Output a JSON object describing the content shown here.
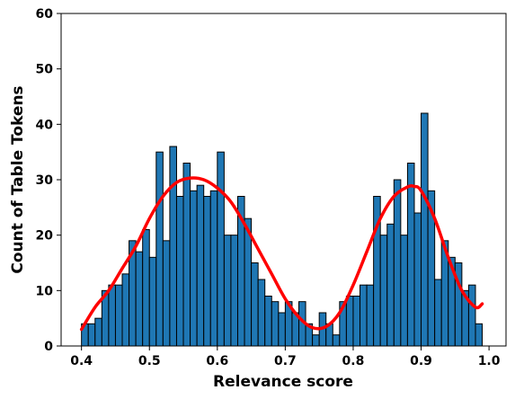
{
  "chart_data": {
    "type": "bar",
    "xlabel": "Relevance score",
    "ylabel": "Count of Table Tokens",
    "xlim": [
      0.37,
      1.025
    ],
    "ylim": [
      0,
      60
    ],
    "xticks": [
      0.4,
      0.5,
      0.6,
      0.7,
      0.8,
      0.9,
      1.0
    ],
    "xtick_labels": [
      "0.4",
      "0.5",
      "0.6",
      "0.7",
      "0.8",
      "0.9",
      "1.0"
    ],
    "yticks": [
      0,
      10,
      20,
      30,
      40,
      50,
      60
    ],
    "ytick_labels": [
      "0",
      "10",
      "20",
      "30",
      "40",
      "50",
      "60"
    ],
    "grid": false,
    "bins": {
      "start": 0.4,
      "width": 0.01,
      "counts": [
        4,
        4,
        5,
        10,
        11,
        11,
        13,
        19,
        17,
        21,
        16,
        35,
        19,
        36,
        27,
        33,
        28,
        29,
        27,
        28,
        35,
        20,
        20,
        27,
        23,
        15,
        12,
        9,
        8,
        6,
        8,
        6,
        8,
        4,
        2,
        6,
        4,
        2,
        8,
        9,
        9,
        11,
        11,
        27,
        20,
        22,
        30,
        20,
        33,
        24,
        42,
        28,
        12,
        19,
        16,
        15,
        10,
        11,
        4
      ]
    },
    "bar_color": "#1f77b4",
    "bar_edge_color": "#000000",
    "curve": {
      "color": "#ff0000",
      "x": [
        0.4,
        0.42,
        0.44,
        0.46,
        0.48,
        0.5,
        0.52,
        0.54,
        0.56,
        0.58,
        0.6,
        0.62,
        0.64,
        0.66,
        0.68,
        0.7,
        0.72,
        0.74,
        0.76,
        0.78,
        0.8,
        0.82,
        0.84,
        0.86,
        0.88,
        0.89,
        0.9,
        0.92,
        0.94,
        0.96,
        0.98,
        0.99
      ],
      "y": [
        3,
        7,
        10,
        14,
        18,
        23,
        27,
        29.5,
        30.3,
        30,
        28.5,
        26,
        22,
        17.5,
        13,
        8.5,
        5.2,
        3.3,
        3.5,
        6,
        11,
        17,
        23,
        27,
        28.7,
        28.8,
        28,
        23,
        16,
        10,
        7,
        7.6
      ]
    }
  }
}
